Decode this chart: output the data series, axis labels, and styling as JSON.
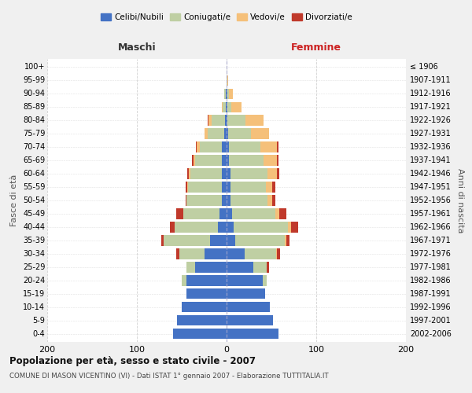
{
  "age_groups": [
    "0-4",
    "5-9",
    "10-14",
    "15-19",
    "20-24",
    "25-29",
    "30-34",
    "35-39",
    "40-44",
    "45-49",
    "50-54",
    "55-59",
    "60-64",
    "65-69",
    "70-74",
    "75-79",
    "80-84",
    "85-89",
    "90-94",
    "95-99",
    "100+"
  ],
  "birth_years": [
    "2002-2006",
    "1997-2001",
    "1992-1996",
    "1987-1991",
    "1982-1986",
    "1977-1981",
    "1972-1976",
    "1967-1971",
    "1962-1966",
    "1957-1961",
    "1952-1956",
    "1947-1951",
    "1942-1946",
    "1937-1941",
    "1932-1936",
    "1927-1931",
    "1922-1926",
    "1917-1921",
    "1912-1916",
    "1907-1911",
    "≤ 1906"
  ],
  "colors": {
    "celibe": "#4472C4",
    "coniugato": "#BFCFA3",
    "vedovo": "#F5C07A",
    "divorziato": "#C0392B"
  },
  "maschi": {
    "celibe": [
      60,
      55,
      50,
      45,
      45,
      35,
      25,
      18,
      10,
      8,
      5,
      5,
      5,
      5,
      5,
      3,
      2,
      1,
      1,
      0,
      0
    ],
    "coniugato": [
      0,
      0,
      0,
      0,
      5,
      10,
      28,
      52,
      48,
      40,
      40,
      38,
      35,
      30,
      25,
      18,
      15,
      3,
      2,
      0,
      0
    ],
    "vedovo": [
      0,
      0,
      0,
      0,
      0,
      0,
      0,
      0,
      0,
      0,
      0,
      1,
      2,
      2,
      3,
      4,
      3,
      1,
      0,
      0,
      0
    ],
    "divorziato": [
      0,
      0,
      0,
      0,
      0,
      0,
      3,
      3,
      5,
      8,
      1,
      2,
      2,
      2,
      1,
      0,
      1,
      0,
      0,
      0,
      0
    ]
  },
  "femmine": {
    "nubile": [
      58,
      52,
      48,
      43,
      40,
      30,
      20,
      10,
      8,
      6,
      4,
      4,
      4,
      3,
      3,
      2,
      1,
      1,
      1,
      0,
      0
    ],
    "coniugata": [
      0,
      0,
      0,
      0,
      5,
      15,
      35,
      55,
      60,
      48,
      42,
      40,
      42,
      38,
      35,
      25,
      20,
      4,
      2,
      1,
      0
    ],
    "vedova": [
      0,
      0,
      0,
      0,
      0,
      0,
      1,
      2,
      4,
      5,
      5,
      7,
      10,
      15,
      18,
      20,
      20,
      12,
      4,
      1,
      0
    ],
    "divorziata": [
      0,
      0,
      0,
      0,
      0,
      2,
      4,
      3,
      8,
      8,
      3,
      3,
      3,
      2,
      2,
      0,
      0,
      0,
      0,
      0,
      0
    ]
  },
  "title": "Popolazione per età, sesso e stato civile - 2007",
  "subtitle": "COMUNE DI MASON VICENTINO (VI) - Dati ISTAT 1° gennaio 2007 - Elaborazione TUTTITALIA.IT",
  "xlabel_left": "Maschi",
  "xlabel_right": "Femmine",
  "ylabel_left": "Fasce di età",
  "ylabel_right": "Anni di nascita",
  "xlim": 200,
  "legend_labels": [
    "Celibi/Nubili",
    "Coniugati/e",
    "Vedovi/e",
    "Divorziati/e"
  ],
  "bg_color": "#F0F0F0",
  "plot_bg": "#FFFFFF"
}
